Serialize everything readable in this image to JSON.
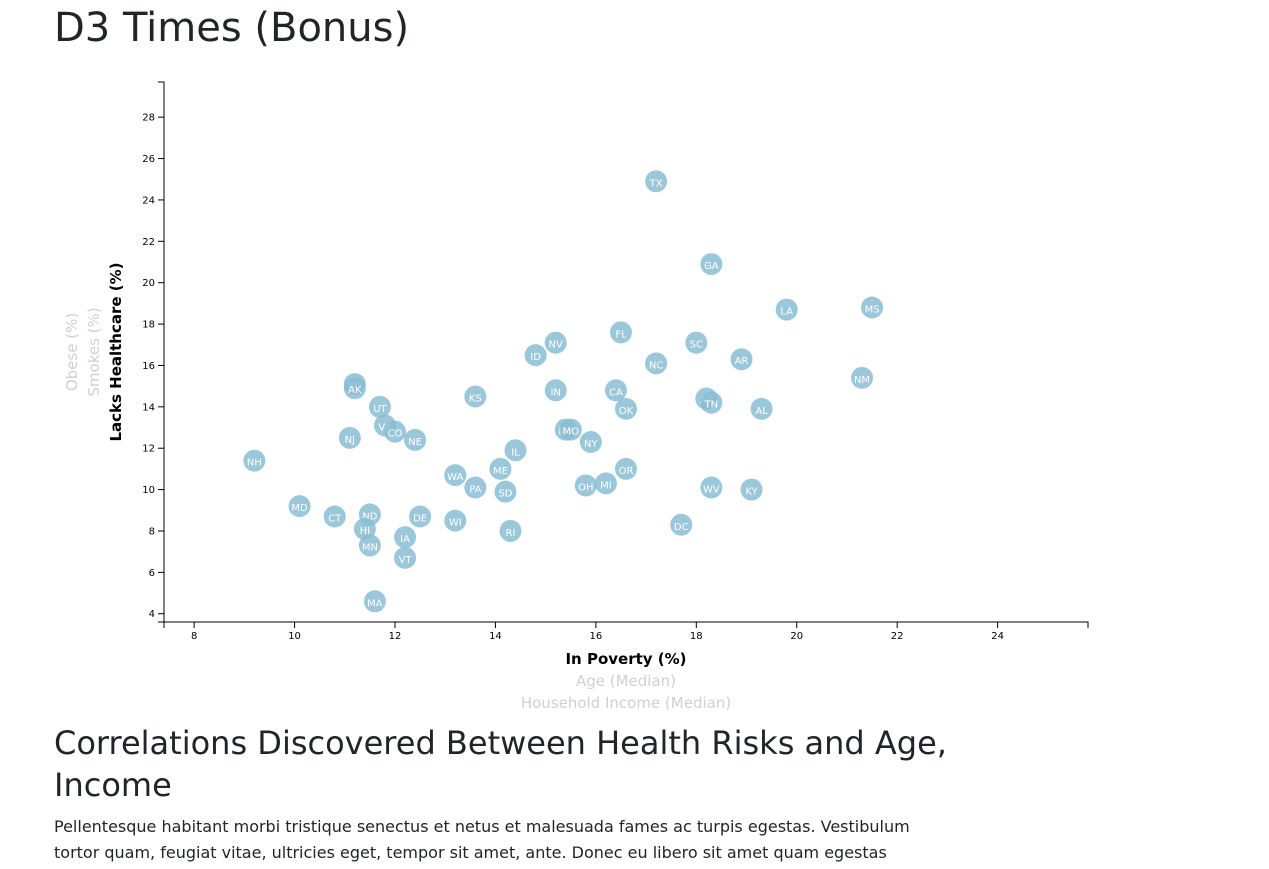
{
  "page": {
    "title": "D3 Times (Bonus)",
    "section_title": "Correlations Discovered Between Health Risks and Age, Income",
    "body_text": "Pellentesque habitant morbi tristique senectus et netus et malesuada fames ac turpis egestas. Vestibulum tortor quam, feugiat vitae, ultricies eget, tempor sit amet, ante. Donec eu libero sit amet quam egestas semper. Aenean"
  },
  "colors": {
    "point_fill": "#89bdd3",
    "point_text": "#ffffff",
    "axis_active": "#000000",
    "axis_inactive": "#d0d0d0"
  },
  "chart_data": {
    "type": "scatter",
    "x_axis_options": [
      {
        "label": "In Poverty (%)",
        "active": true
      },
      {
        "label": "Age (Median)",
        "active": false
      },
      {
        "label": "Household Income (Median)",
        "active": false
      }
    ],
    "y_axis_options": [
      {
        "label": "Lacks Healthcare (%)",
        "active": true
      },
      {
        "label": "Smokes (%)",
        "active": false
      },
      {
        "label": "Obese (%)",
        "active": false
      }
    ],
    "xlim": [
      7.4,
      25.8
    ],
    "ylim": [
      3.6,
      29.7
    ],
    "x_ticks": [
      8,
      10,
      12,
      14,
      16,
      18,
      20,
      22,
      24
    ],
    "y_ticks": [
      4,
      6,
      8,
      10,
      12,
      14,
      16,
      18,
      20,
      22,
      24,
      26,
      28
    ],
    "grid": false,
    "points": [
      {
        "state": "TX",
        "x": 17.2,
        "y": 24.9
      },
      {
        "state": "GA",
        "x": 18.3,
        "y": 20.9
      },
      {
        "state": "LA",
        "x": 19.8,
        "y": 18.7
      },
      {
        "state": "MS",
        "x": 21.5,
        "y": 18.8
      },
      {
        "state": "FL",
        "x": 16.5,
        "y": 17.6
      },
      {
        "state": "SC",
        "x": 18.0,
        "y": 17.1
      },
      {
        "state": "NV",
        "x": 15.2,
        "y": 17.1
      },
      {
        "state": "ID",
        "x": 14.8,
        "y": 16.5
      },
      {
        "state": "NC",
        "x": 17.2,
        "y": 16.1
      },
      {
        "state": "AR",
        "x": 18.9,
        "y": 16.3
      },
      {
        "state": "NM",
        "x": 21.3,
        "y": 15.4
      },
      {
        "state": "WY",
        "x": 11.2,
        "y": 15.1
      },
      {
        "state": "AK",
        "x": 11.2,
        "y": 14.9
      },
      {
        "state": "IN",
        "x": 15.2,
        "y": 14.8
      },
      {
        "state": "CA",
        "x": 16.4,
        "y": 14.8
      },
      {
        "state": "KS",
        "x": 13.6,
        "y": 14.5
      },
      {
        "state": "AZ",
        "x": 18.2,
        "y": 14.4
      },
      {
        "state": "TN",
        "x": 18.3,
        "y": 14.2
      },
      {
        "state": "UT",
        "x": 11.7,
        "y": 14.0
      },
      {
        "state": "OK",
        "x": 16.6,
        "y": 13.9
      },
      {
        "state": "AL",
        "x": 19.3,
        "y": 13.9
      },
      {
        "state": "VA",
        "x": 11.8,
        "y": 13.1
      },
      {
        "state": "MT",
        "x": 15.4,
        "y": 12.9
      },
      {
        "state": "MO",
        "x": 15.5,
        "y": 12.9
      },
      {
        "state": "CO",
        "x": 12.0,
        "y": 12.8
      },
      {
        "state": "NJ",
        "x": 11.1,
        "y": 12.5
      },
      {
        "state": "NE",
        "x": 12.4,
        "y": 12.4
      },
      {
        "state": "NY",
        "x": 15.9,
        "y": 12.3
      },
      {
        "state": "IL",
        "x": 14.4,
        "y": 11.9
      },
      {
        "state": "NH",
        "x": 9.2,
        "y": 11.4
      },
      {
        "state": "ME",
        "x": 14.1,
        "y": 11.0
      },
      {
        "state": "OR",
        "x": 16.6,
        "y": 11.0
      },
      {
        "state": "WA",
        "x": 13.2,
        "y": 10.7
      },
      {
        "state": "OH",
        "x": 15.8,
        "y": 10.2
      },
      {
        "state": "MI",
        "x": 16.2,
        "y": 10.3
      },
      {
        "state": "PA",
        "x": 13.6,
        "y": 10.1
      },
      {
        "state": "WV",
        "x": 18.3,
        "y": 10.1
      },
      {
        "state": "KY",
        "x": 19.1,
        "y": 10.0
      },
      {
        "state": "SD",
        "x": 14.2,
        "y": 9.9
      },
      {
        "state": "MD",
        "x": 10.1,
        "y": 9.2
      },
      {
        "state": "ND",
        "x": 11.5,
        "y": 8.8
      },
      {
        "state": "CT",
        "x": 10.8,
        "y": 8.7
      },
      {
        "state": "DE",
        "x": 12.5,
        "y": 8.7
      },
      {
        "state": "WI",
        "x": 13.2,
        "y": 8.5
      },
      {
        "state": "DC",
        "x": 17.7,
        "y": 8.3
      },
      {
        "state": "HI",
        "x": 11.4,
        "y": 8.1
      },
      {
        "state": "RI",
        "x": 14.3,
        "y": 8.0
      },
      {
        "state": "IA",
        "x": 12.2,
        "y": 7.7
      },
      {
        "state": "MN",
        "x": 11.5,
        "y": 7.3
      },
      {
        "state": "VT",
        "x": 12.2,
        "y": 6.7
      },
      {
        "state": "MA",
        "x": 11.6,
        "y": 4.6
      }
    ]
  }
}
